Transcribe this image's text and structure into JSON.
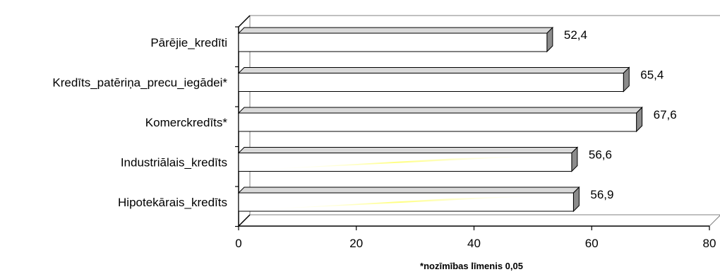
{
  "chart_data": {
    "type": "bar",
    "orientation": "horizontal",
    "categories": [
      "Pārējie_kredīti",
      "Kredīts_patēriņa_precu_iegādei*",
      "Komerckredīts*",
      "Industriālais_kredīts",
      "Hipotekārais_kredīts"
    ],
    "values": [
      52.4,
      65.4,
      67.6,
      56.6,
      56.9
    ],
    "value_labels": [
      "52,4",
      "65,4",
      "67,6",
      "56,6",
      "56,9"
    ],
    "xlim": [
      0,
      80
    ],
    "xticks": [
      0,
      20,
      40,
      60,
      80
    ],
    "xtick_labels": [
      "0",
      "20",
      "40",
      "60",
      "80"
    ],
    "footnote": "*nozīmības līmenis 0,05",
    "grid": false,
    "legend": "none",
    "colors": {
      "bar_face": "#ffffff",
      "bar_side": "#8c8c8c",
      "bar_top": "#d9d9d9",
      "axis": "#000000",
      "wall": "#808080",
      "highlight": "#ffff66"
    }
  }
}
